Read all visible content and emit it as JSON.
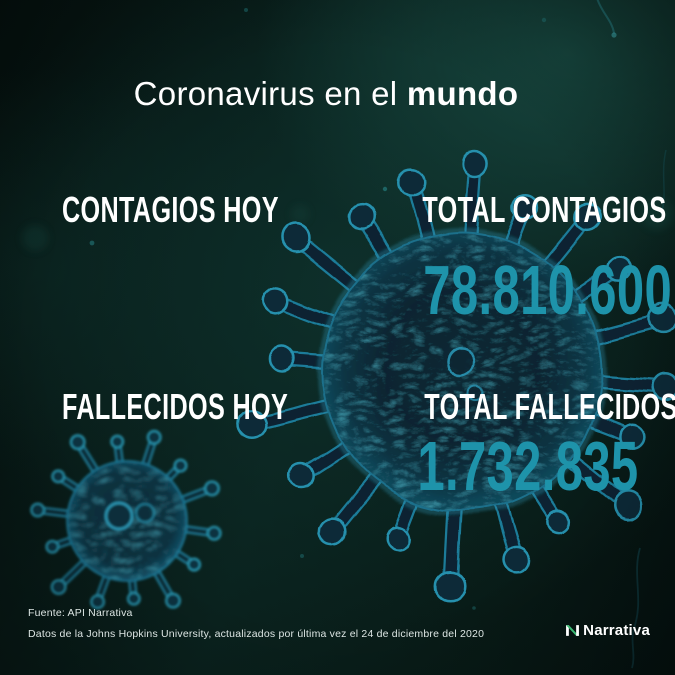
{
  "title": {
    "prefix": "Coronavirus en el ",
    "emphasis": "mundo"
  },
  "stats": {
    "rows": [
      {
        "today_label": "CONTAGIOS HOY",
        "total_label": "TOTAL CONTAGIOS",
        "total_value": "78.810.600"
      },
      {
        "today_label": "FALLECIDOS HOY",
        "total_label": "TOTAL FALLECIDOS",
        "total_value": "1.732.835"
      }
    ]
  },
  "footer": {
    "source_line": "Fuente: API Narrativa",
    "update_line": "Datos de la Johns Hopkins University, actualizados por última vez el 24 de diciembre del 2020",
    "brand_name": "Narrativa"
  },
  "colors": {
    "accent_teal": "#1e93aa",
    "brand_green": "#3bb873",
    "text_white": "#ffffff",
    "background_dark": "#071613"
  },
  "chart_data": {
    "type": "table",
    "title": "Coronavirus en el mundo",
    "categories": [
      "TOTAL CONTAGIOS",
      "TOTAL FALLECIDOS"
    ],
    "values": [
      78810600,
      1732835
    ],
    "display_values": [
      "78.810.600",
      "1.732.835"
    ],
    "extra_labels_without_values": [
      "CONTAGIOS HOY",
      "FALLECIDOS HOY"
    ],
    "as_of": "24 de diciembre del 2020",
    "source": "API Narrativa / Johns Hopkins University"
  }
}
